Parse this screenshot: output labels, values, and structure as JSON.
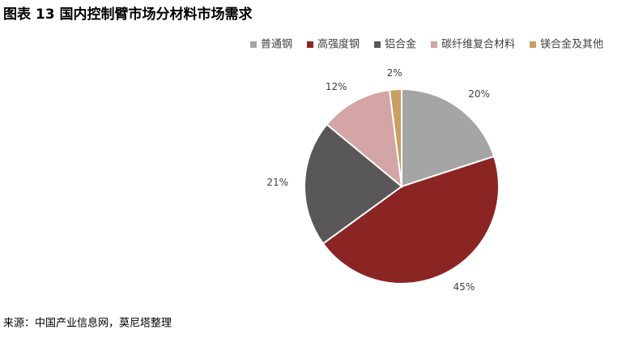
{
  "chart_data": {
    "type": "pie",
    "title": "图表 13 国内控制臂市场分材料市场需求",
    "categories": [
      "普通钢",
      "高强度钢",
      "铝合金",
      "碳纤维复合材料",
      "镁合金及其他"
    ],
    "values": [
      20,
      45,
      21,
      12,
      2
    ],
    "value_labels": [
      "20%",
      "45%",
      "21%",
      "12%",
      "2%"
    ],
    "colors": [
      "#a5a5a5",
      "#8b2524",
      "#595757",
      "#d4a5a5",
      "#c8a064"
    ],
    "legend": "top-right",
    "source": "来源：中国产业信息网，莫尼塔整理"
  }
}
